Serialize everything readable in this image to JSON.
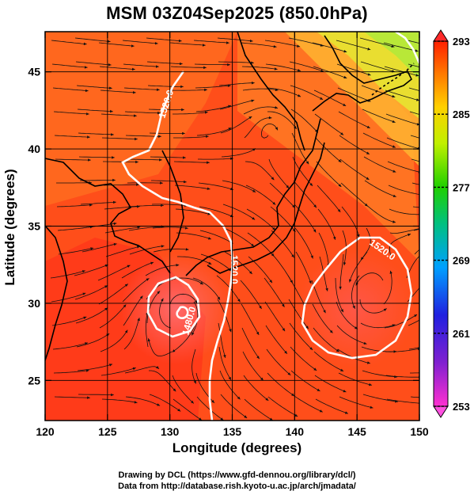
{
  "figure": {
    "title": "MSM 03Z04Sep2025 (850.0hPa)",
    "xlabel": "Longitude (degrees)",
    "ylabel": "Latitude  (degrees)",
    "credit_line1": "Drawing by DCL (https://www.gfd-dennou.org/library/dcl/)",
    "credit_line2": "Data from http://database.rish.kyoto-u.ac.jp/arch/jmadata/"
  },
  "map": {
    "lon_range": [
      120,
      150
    ],
    "lat_range": [
      22.4,
      47.6
    ],
    "lon_ticks": [
      120,
      125,
      130,
      135,
      140,
      145,
      150
    ],
    "lon_tick_labels": [
      "120",
      "125",
      "130",
      "135",
      "140",
      "145",
      "150"
    ],
    "lat_ticks": [
      25,
      30,
      35,
      40,
      45
    ],
    "lat_tick_labels": [
      "25",
      "30",
      "35",
      "40",
      "45"
    ],
    "grid": true,
    "contour_labels": [
      {
        "text": "1520.0",
        "lon": 129.2,
        "lat": 42.0
      },
      {
        "text": "1520.0",
        "lon": 135.8,
        "lat": 32.0
      },
      {
        "text": "1480.0",
        "lon": 130.8,
        "lat": 29.2
      },
      {
        "text": "1520.0",
        "lon": 147.0,
        "lat": 33.8
      }
    ],
    "features": {
      "low_center": {
        "lon": 131.0,
        "lat": 30.0
      },
      "anticyclone_center": {
        "lon": 146.0,
        "lat": 30.0
      },
      "cyclonic_eddy": {
        "lon": 138.0,
        "lat": 41.5
      }
    }
  },
  "colorbar": {
    "min": 253,
    "max": 293,
    "ticks": [
      293,
      285,
      277,
      269,
      261,
      253
    ],
    "tick_labels": [
      "293",
      "285",
      "277",
      "269",
      "261",
      "253"
    ],
    "colors": [
      "#c000c0",
      "#2020e0",
      "#00c0ff",
      "#00c080",
      "#40d000",
      "#c0ff00",
      "#ffd000",
      "#ff8000",
      "#ff2000"
    ]
  }
}
